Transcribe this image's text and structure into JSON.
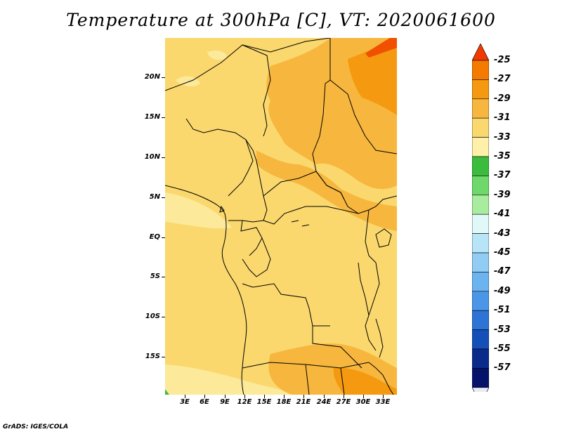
{
  "title": "Temperature at 300hPa [C], VT: 2020061600",
  "credit": "GrADS: IGES/COLA",
  "lat_labels": [
    "20N",
    "15N",
    "10N",
    "5N",
    "EQ",
    "5S",
    "10S",
    "15S"
  ],
  "lon_labels": [
    "3E",
    "6E",
    "9E",
    "12E",
    "15E",
    "18E",
    "21E",
    "24E",
    "27E",
    "30E",
    "33E"
  ],
  "colorbar": {
    "levels": [
      "-25",
      "-27",
      "-29",
      "-31",
      "-33",
      "-35",
      "-37",
      "-39",
      "-41",
      "-43",
      "-45",
      "-47",
      "-49",
      "-51",
      "-53",
      "-55",
      "-57"
    ],
    "colors": [
      "#f05000",
      "#f57a00",
      "#f59a10",
      "#f7b73e",
      "#fad86e",
      "#fef0a8",
      "#3cbc3c",
      "#6fd86a",
      "#a8eca0",
      "#e0f8f8",
      "#b8e4f8",
      "#90ccf4",
      "#6cb4f0",
      "#4c96e8",
      "#2e74d6",
      "#1450b8",
      "#0a2a8c",
      "#04126a"
    ],
    "top_cap_color": "#f03a00",
    "bottom_cap_color": "#e8eaf6"
  },
  "map_colors": {
    "base": "#fad86e",
    "pale": "#fde99a",
    "warm": "#f7b73e",
    "warmer": "#f59a10",
    "hot": "#f05000",
    "green": "#3cbc3c"
  }
}
